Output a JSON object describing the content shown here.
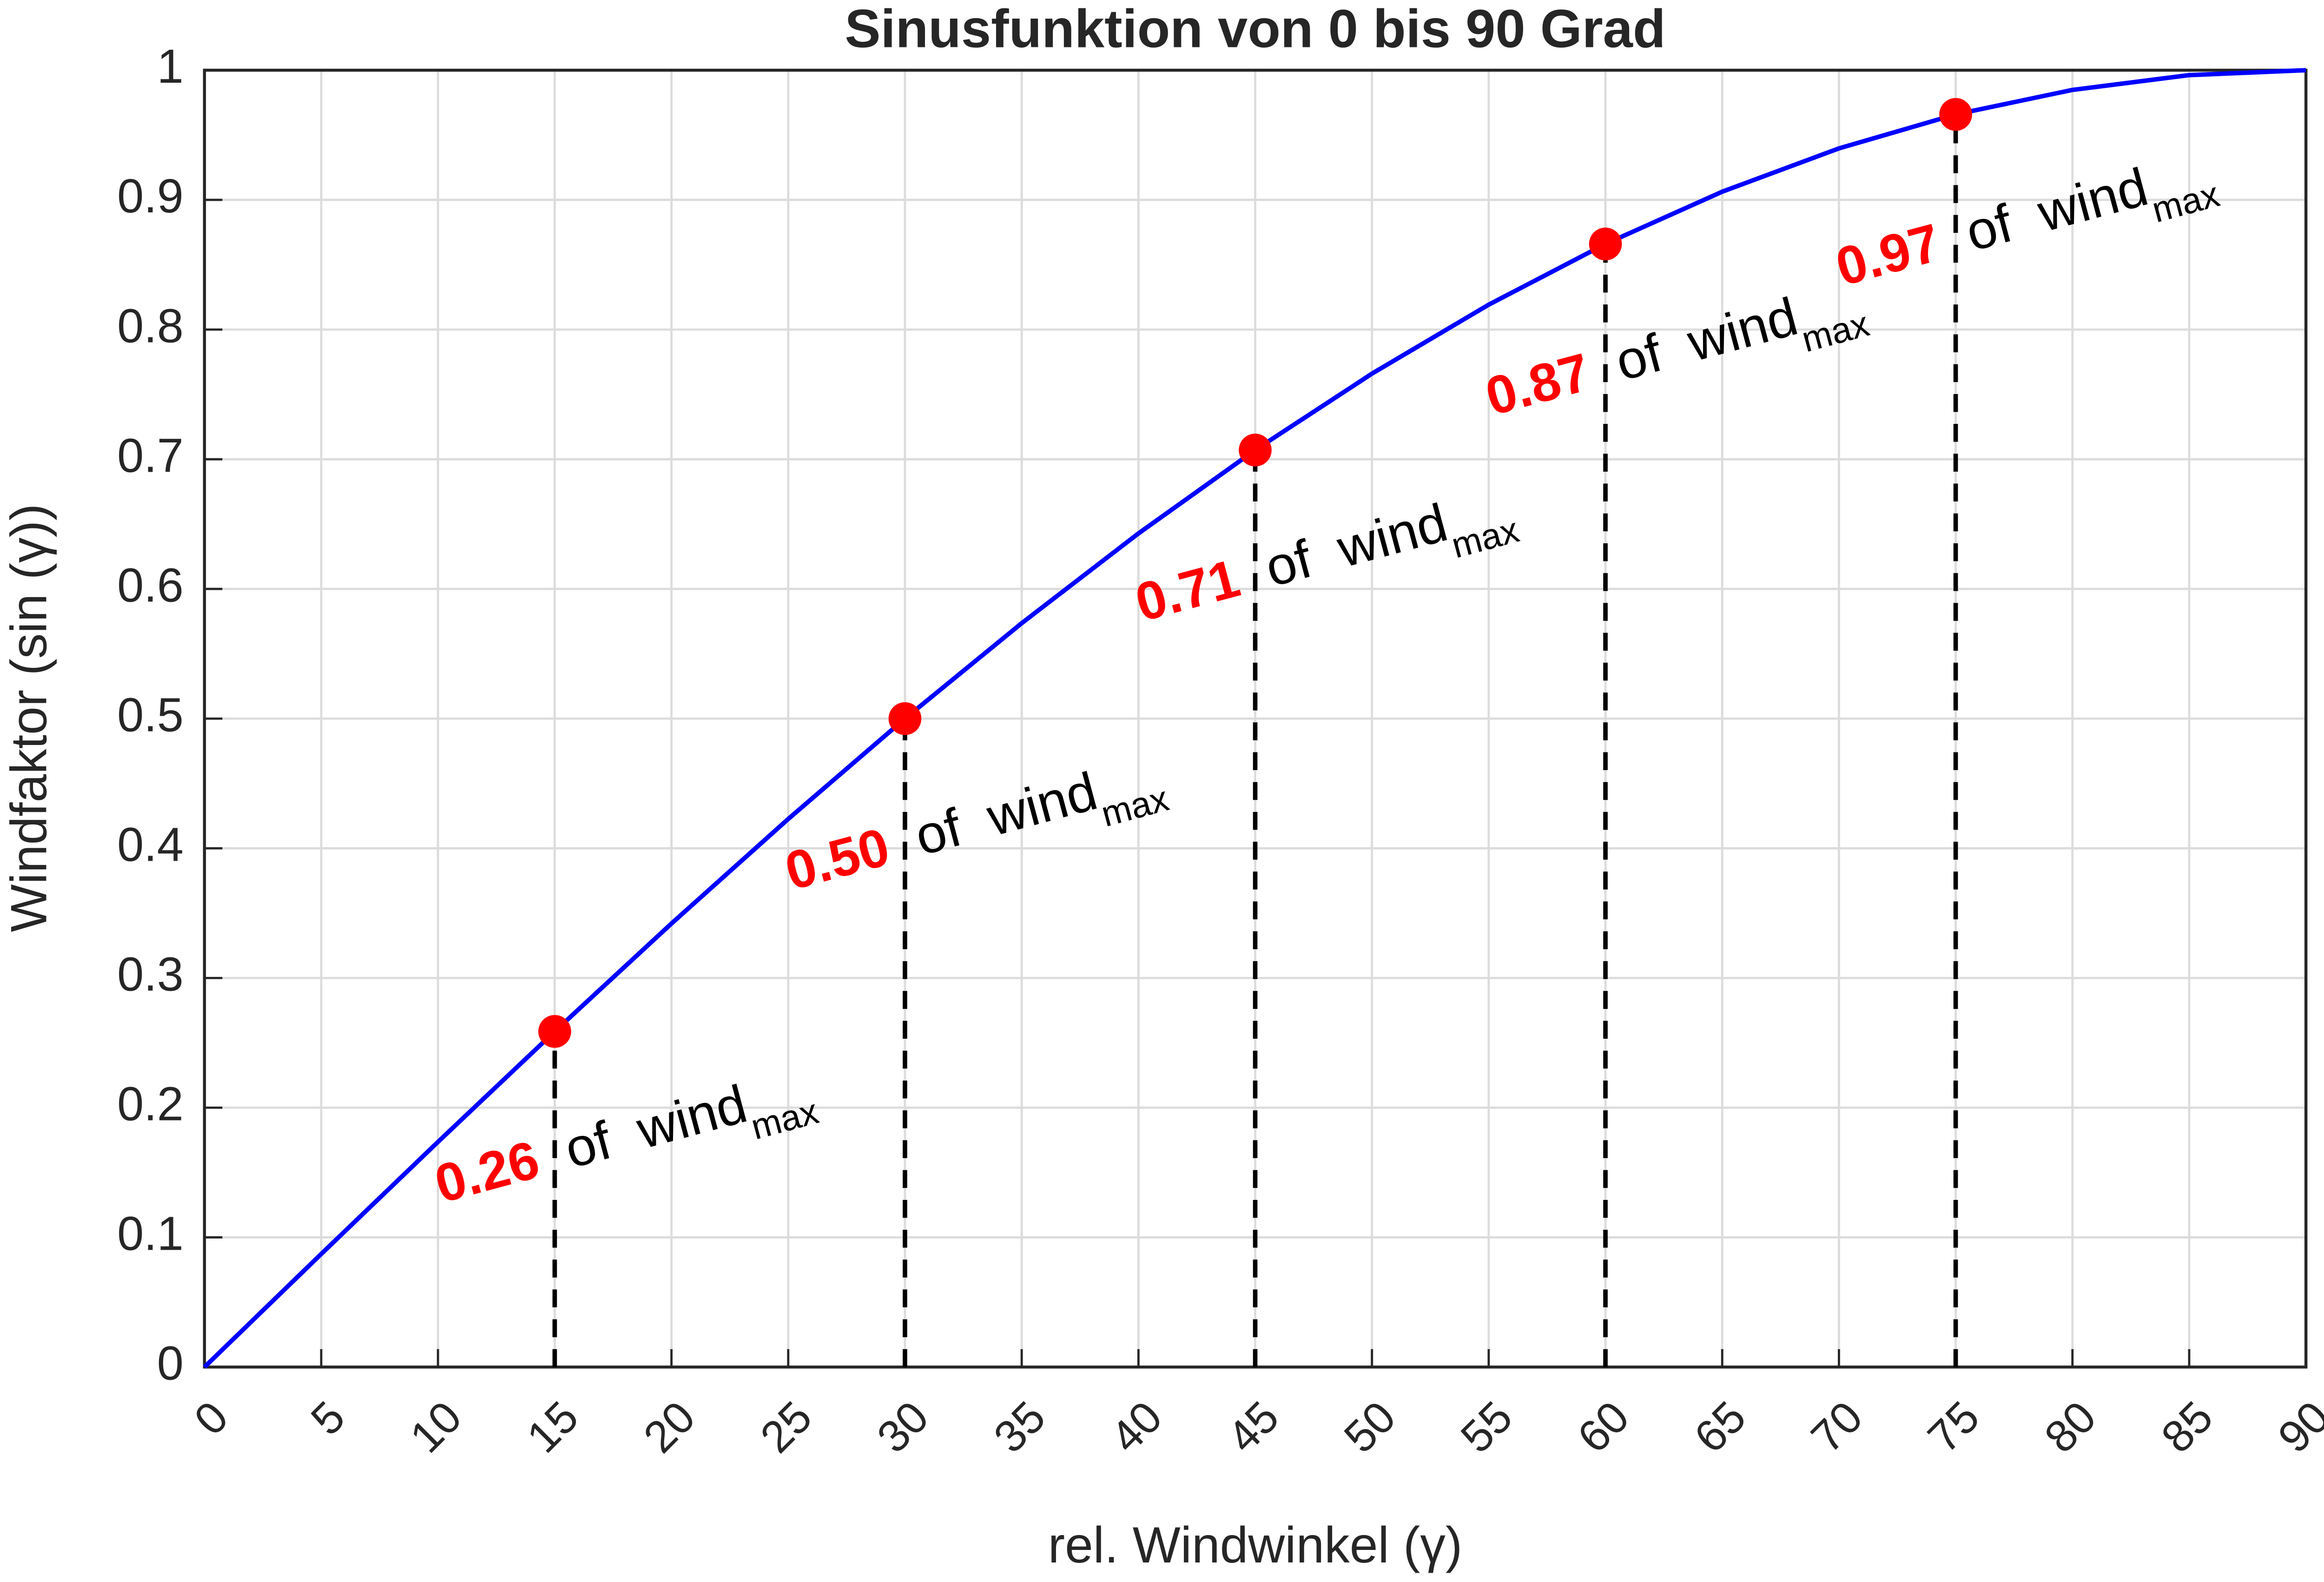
{
  "chart_data": {
    "type": "line",
    "title": "Sinusfunktion von 0 bis 90 Grad",
    "xlabel": "rel. Windwinkel (γ)",
    "ylabel": "Windfaktor (sin (γ))",
    "x": [
      0,
      5,
      10,
      15,
      20,
      25,
      30,
      35,
      40,
      45,
      50,
      55,
      60,
      65,
      70,
      75,
      80,
      85,
      90
    ],
    "series": [
      {
        "color": "#0000ff",
        "values": [
          0,
          0.0872,
          0.1736,
          0.2588,
          0.342,
          0.4226,
          0.5,
          0.5736,
          0.6428,
          0.7071,
          0.766,
          0.8192,
          0.866,
          0.9063,
          0.9397,
          0.9659,
          0.9848,
          0.9962,
          1
        ]
      }
    ],
    "markers": {
      "color": "#ff0000",
      "x": [
        15,
        30,
        45,
        60,
        75
      ],
      "values": [
        0.2588,
        0.5,
        0.7071,
        0.866,
        0.9659
      ],
      "value_labels": [
        "0.26",
        "0.50",
        "0.71",
        "0.87",
        "0.97"
      ]
    },
    "annotation_text": "of wind",
    "annotation_subscript": "max",
    "xlim": [
      0,
      90
    ],
    "xticks": [
      0,
      5,
      10,
      15,
      20,
      25,
      30,
      35,
      40,
      45,
      50,
      55,
      60,
      65,
      70,
      75,
      80,
      85,
      90
    ],
    "ylim": [
      0,
      1
    ],
    "yticks": [
      0,
      0.1,
      0.2,
      0.3,
      0.4,
      0.5,
      0.6,
      0.7,
      0.8,
      0.9,
      1
    ],
    "grid": true
  }
}
